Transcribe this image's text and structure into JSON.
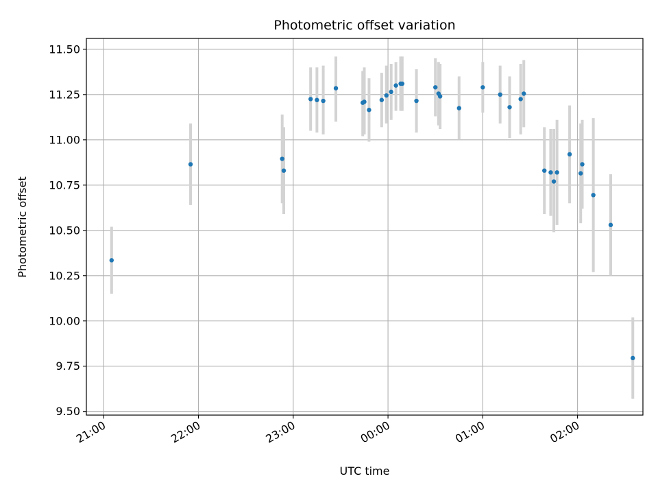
{
  "chart_data": {
    "type": "scatter",
    "title": "Photometric offset variation",
    "xlabel": "UTC time",
    "ylabel": "Photometric offset",
    "ylim": [
      9.48,
      11.56
    ],
    "xlim_hours": [
      20.817,
      26.69
    ],
    "yticks": [
      9.5,
      9.75,
      10.0,
      10.25,
      10.5,
      10.75,
      11.0,
      11.25,
      11.5
    ],
    "ytick_labels": [
      "9.50",
      "9.75",
      "10.00",
      "10.25",
      "10.50",
      "10.75",
      "11.00",
      "11.25",
      "11.50"
    ],
    "xticks_hours": [
      21,
      22,
      23,
      24,
      25,
      26
    ],
    "xtick_labels": [
      "21:00",
      "22:00",
      "23:00",
      "00:00",
      "01:00",
      "02:00"
    ],
    "grid": true,
    "legend": "none",
    "marker_color": "#1f77b4",
    "errorbar_color": "#d3d3d3",
    "series": [
      {
        "points": [
          {
            "t": "21:05",
            "y": 10.335,
            "lo": 10.15,
            "hi": 10.52
          },
          {
            "t": "21:55",
            "y": 10.865,
            "lo": 10.64,
            "hi": 11.09
          },
          {
            "t": "22:53",
            "y": 10.895,
            "lo": 10.65,
            "hi": 11.14
          },
          {
            "t": "22:54",
            "y": 10.83,
            "lo": 10.59,
            "hi": 11.07
          },
          {
            "t": "23:11",
            "y": 11.225,
            "lo": 11.05,
            "hi": 11.4
          },
          {
            "t": "23:15",
            "y": 11.22,
            "lo": 11.04,
            "hi": 11.4
          },
          {
            "t": "23:19",
            "y": 11.215,
            "lo": 11.03,
            "hi": 11.41
          },
          {
            "t": "23:27",
            "y": 11.285,
            "lo": 11.1,
            "hi": 11.46
          },
          {
            "t": "23:44",
            "y": 11.205,
            "lo": 11.02,
            "hi": 11.38
          },
          {
            "t": "23:45",
            "y": 11.21,
            "lo": 11.03,
            "hi": 11.4
          },
          {
            "t": "23:48",
            "y": 11.165,
            "lo": 10.99,
            "hi": 11.34
          },
          {
            "t": "23:56",
            "y": 11.22,
            "lo": 11.07,
            "hi": 11.37
          },
          {
            "t": "23:59",
            "y": 11.245,
            "lo": 11.09,
            "hi": 11.41
          },
          {
            "t": "00:02",
            "y": 11.265,
            "lo": 11.11,
            "hi": 11.42
          },
          {
            "t": "00:05",
            "y": 11.3,
            "lo": 11.16,
            "hi": 11.43
          },
          {
            "t": "00:08",
            "y": 11.31,
            "lo": 11.16,
            "hi": 11.46
          },
          {
            "t": "00:09",
            "y": 11.31,
            "lo": 11.16,
            "hi": 11.46
          },
          {
            "t": "00:18",
            "y": 11.215,
            "lo": 11.04,
            "hi": 11.39
          },
          {
            "t": "00:30",
            "y": 11.29,
            "lo": 11.13,
            "hi": 11.45
          },
          {
            "t": "00:32",
            "y": 11.255,
            "lo": 11.08,
            "hi": 11.43
          },
          {
            "t": "00:33",
            "y": 11.24,
            "lo": 11.06,
            "hi": 11.42
          },
          {
            "t": "00:45",
            "y": 11.175,
            "lo": 11.0,
            "hi": 11.35
          },
          {
            "t": "01:00",
            "y": 11.29,
            "lo": 11.15,
            "hi": 11.43
          },
          {
            "t": "01:11",
            "y": 11.25,
            "lo": 11.09,
            "hi": 11.41
          },
          {
            "t": "01:17",
            "y": 11.18,
            "lo": 11.01,
            "hi": 11.35
          },
          {
            "t": "01:24",
            "y": 11.225,
            "lo": 11.03,
            "hi": 11.42
          },
          {
            "t": "01:26",
            "y": 11.255,
            "lo": 11.07,
            "hi": 11.44
          },
          {
            "t": "01:39",
            "y": 10.83,
            "lo": 10.59,
            "hi": 11.07
          },
          {
            "t": "01:43",
            "y": 10.82,
            "lo": 10.58,
            "hi": 11.06
          },
          {
            "t": "01:45",
            "y": 10.77,
            "lo": 10.49,
            "hi": 11.06
          },
          {
            "t": "01:47",
            "y": 10.82,
            "lo": 10.53,
            "hi": 11.11
          },
          {
            "t": "01:55",
            "y": 10.92,
            "lo": 10.65,
            "hi": 11.19
          },
          {
            "t": "02:02",
            "y": 10.815,
            "lo": 10.54,
            "hi": 11.09
          },
          {
            "t": "02:03",
            "y": 10.865,
            "lo": 10.62,
            "hi": 11.11
          },
          {
            "t": "02:10",
            "y": 10.695,
            "lo": 10.27,
            "hi": 11.12
          },
          {
            "t": "02:21",
            "y": 10.53,
            "lo": 10.25,
            "hi": 10.81
          },
          {
            "t": "02:35",
            "y": 9.795,
            "lo": 9.57,
            "hi": 10.02
          }
        ]
      }
    ]
  }
}
